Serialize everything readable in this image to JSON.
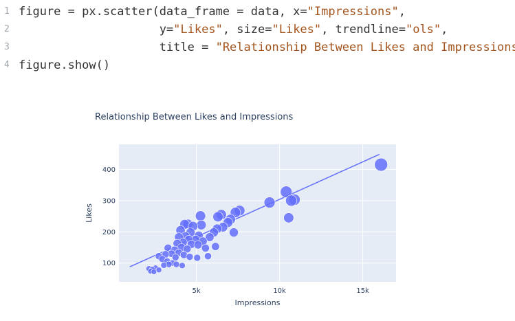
{
  "code": {
    "lines": [
      {
        "num": "1",
        "segments": [
          {
            "t": "figure = px.scatter(data_frame = data, x=",
            "k": "plain"
          },
          {
            "t": "\"Impressions\"",
            "k": "str"
          },
          {
            "t": ",",
            "k": "plain"
          }
        ]
      },
      {
        "num": "2",
        "segments": [
          {
            "t": "                    y=",
            "k": "plain"
          },
          {
            "t": "\"Likes\"",
            "k": "str"
          },
          {
            "t": ", size=",
            "k": "plain"
          },
          {
            "t": "\"Likes\"",
            "k": "str"
          },
          {
            "t": ", trendline=",
            "k": "plain"
          },
          {
            "t": "\"ols\"",
            "k": "str"
          },
          {
            "t": ",",
            "k": "plain"
          }
        ]
      },
      {
        "num": "3",
        "segments": [
          {
            "t": "                    title = ",
            "k": "plain"
          },
          {
            "t": "\"Relationship Between Likes and Impressions\"",
            "k": "str"
          },
          {
            "t": ")",
            "k": "plain"
          }
        ]
      },
      {
        "num": "4",
        "segments": [
          {
            "t": "figure.show()",
            "k": "plain"
          }
        ]
      }
    ]
  },
  "colors": {
    "plot_bg": "#e5ecf6",
    "marker": "#636efa",
    "grid": "#ffffff",
    "title": "#2a3f5f",
    "code_string": "#a3541d"
  },
  "chart_data": {
    "type": "scatter",
    "title": "Relationship Between Likes and Impressions",
    "xlabel": "Impressions",
    "ylabel": "Likes",
    "xlim": [
      350,
      17000
    ],
    "ylim": [
      40,
      480
    ],
    "x_ticks": [
      {
        "v": 5000,
        "label": "5k"
      },
      {
        "v": 10000,
        "label": "10k"
      },
      {
        "v": 15000,
        "label": "15k"
      }
    ],
    "y_ticks": [
      {
        "v": 100,
        "label": "100"
      },
      {
        "v": 200,
        "label": "200"
      },
      {
        "v": 300,
        "label": "300"
      },
      {
        "v": 400,
        "label": "400"
      }
    ],
    "grid": true,
    "legend": "none",
    "size_variable": "Likes",
    "trendline": {
      "type": "ols",
      "x": [
        1000,
        16000
      ],
      "y": [
        88,
        448
      ]
    },
    "points": [
      {
        "x": 16100,
        "y": 415
      },
      {
        "x": 10700,
        "y": 300
      },
      {
        "x": 10400,
        "y": 328
      },
      {
        "x": 10900,
        "y": 303
      },
      {
        "x": 10550,
        "y": 245
      },
      {
        "x": 9400,
        "y": 294
      },
      {
        "x": 7600,
        "y": 268
      },
      {
        "x": 7350,
        "y": 262
      },
      {
        "x": 7050,
        "y": 240
      },
      {
        "x": 6900,
        "y": 230
      },
      {
        "x": 7250,
        "y": 198
      },
      {
        "x": 6500,
        "y": 255
      },
      {
        "x": 6300,
        "y": 248
      },
      {
        "x": 6600,
        "y": 215
      },
      {
        "x": 6250,
        "y": 210
      },
      {
        "x": 6050,
        "y": 198
      },
      {
        "x": 5800,
        "y": 183
      },
      {
        "x": 6150,
        "y": 153
      },
      {
        "x": 5250,
        "y": 251
      },
      {
        "x": 5300,
        "y": 222
      },
      {
        "x": 5150,
        "y": 188
      },
      {
        "x": 4950,
        "y": 175
      },
      {
        "x": 5400,
        "y": 170
      },
      {
        "x": 5100,
        "y": 158
      },
      {
        "x": 5550,
        "y": 148
      },
      {
        "x": 5700,
        "y": 122
      },
      {
        "x": 5050,
        "y": 117
      },
      {
        "x": 4500,
        "y": 225
      },
      {
        "x": 4800,
        "y": 218
      },
      {
        "x": 4300,
        "y": 224
      },
      {
        "x": 4650,
        "y": 198
      },
      {
        "x": 4050,
        "y": 205
      },
      {
        "x": 4350,
        "y": 186
      },
      {
        "x": 4550,
        "y": 175
      },
      {
        "x": 3950,
        "y": 183
      },
      {
        "x": 4200,
        "y": 166
      },
      {
        "x": 4700,
        "y": 160
      },
      {
        "x": 3850,
        "y": 163
      },
      {
        "x": 4100,
        "y": 150
      },
      {
        "x": 4450,
        "y": 145
      },
      {
        "x": 3700,
        "y": 142
      },
      {
        "x": 3950,
        "y": 133
      },
      {
        "x": 4250,
        "y": 126
      },
      {
        "x": 3500,
        "y": 130
      },
      {
        "x": 3750,
        "y": 118
      },
      {
        "x": 4600,
        "y": 120
      },
      {
        "x": 3300,
        "y": 148
      },
      {
        "x": 3150,
        "y": 128
      },
      {
        "x": 2950,
        "y": 113
      },
      {
        "x": 3250,
        "y": 106
      },
      {
        "x": 2750,
        "y": 122
      },
      {
        "x": 3550,
        "y": 100
      },
      {
        "x": 3800,
        "y": 96
      },
      {
        "x": 4150,
        "y": 92
      },
      {
        "x": 3350,
        "y": 96
      },
      {
        "x": 3050,
        "y": 93
      },
      {
        "x": 2550,
        "y": 84
      },
      {
        "x": 2350,
        "y": 80
      },
      {
        "x": 2150,
        "y": 82
      },
      {
        "x": 2450,
        "y": 72
      },
      {
        "x": 2750,
        "y": 78
      },
      {
        "x": 2250,
        "y": 74
      }
    ]
  }
}
